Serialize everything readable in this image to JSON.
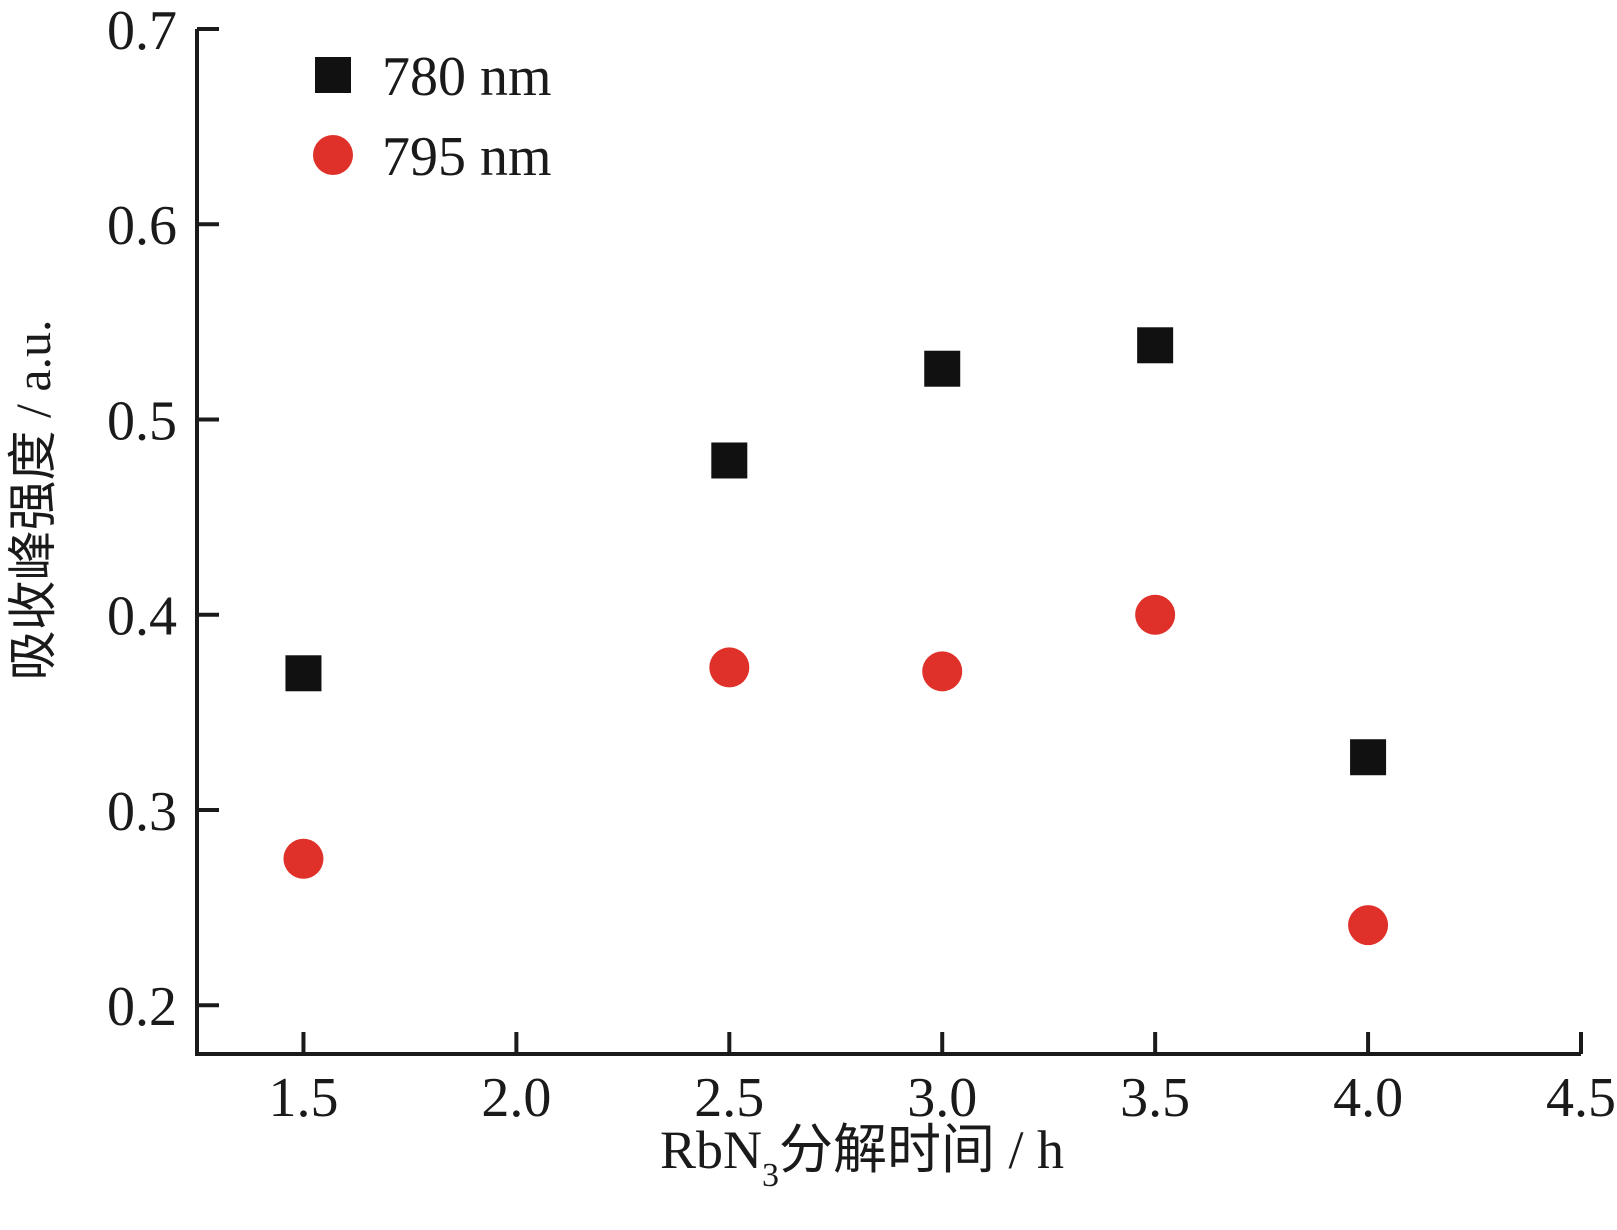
{
  "chart_data": {
    "type": "scatter",
    "xlabel_main": "RbN",
    "xlabel_sub": "3",
    "xlabel_rest": "分解时间  / h",
    "ylabel": "吸收峰强度  / a.u.",
    "xlim": [
      1.25,
      4.5
    ],
    "ylim": [
      0.175,
      0.7
    ],
    "xticks": [
      "1.5",
      "2.0",
      "2.5",
      "3.0",
      "3.5",
      "4.0",
      "4.5"
    ],
    "yticks": [
      "0.2",
      "0.3",
      "0.4",
      "0.5",
      "0.6",
      "0.7"
    ],
    "legend_position": "top-left",
    "grid": false,
    "series": [
      {
        "name": "780 nm",
        "marker": "square",
        "color": "#111111",
        "x": [
          1.5,
          2.5,
          3.0,
          3.5,
          4.0
        ],
        "y": [
          0.37,
          0.479,
          0.526,
          0.538,
          0.327
        ]
      },
      {
        "name": "795 nm",
        "marker": "circle",
        "color": "#e0302a",
        "x": [
          1.5,
          2.5,
          3.0,
          3.5,
          4.0
        ],
        "y": [
          0.275,
          0.373,
          0.371,
          0.4,
          0.241
        ]
      }
    ]
  }
}
